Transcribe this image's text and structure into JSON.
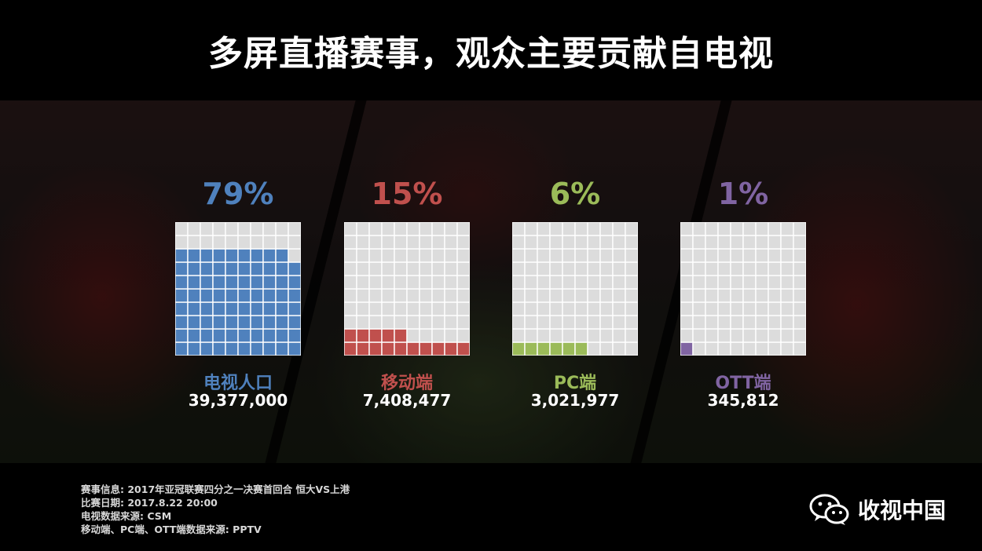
{
  "title": "多屏直播赛事，观众主要贡献自电视",
  "colors": {
    "tv": "#4f81bd",
    "mobile": "#c0504d",
    "pc": "#9bbb59",
    "ott": "#8064a2",
    "empty_cell": "#dcdcdc"
  },
  "chart_data": {
    "type": "waffle",
    "unit_cells": 100,
    "categories": [
      "电视人口",
      "移动端",
      "PC端",
      "OTT端"
    ],
    "percentages": [
      79,
      15,
      6,
      1
    ],
    "percent_labels": [
      "79%",
      "15%",
      "6%",
      "1%"
    ],
    "values": [
      39377000,
      7408477,
      3021977,
      345812
    ],
    "value_labels": [
      "39,377,000",
      "7,408,477",
      "3,021,977",
      "345,812"
    ]
  },
  "footer": {
    "lines": [
      "赛事信息: 2017年亚冠联赛四分之一决赛首回合 恒大VS上港",
      "比赛日期: 2017.8.22 20:00",
      "电视数据来源: CSM",
      "移动端、PC端、OTT端数据来源: PPTV"
    ]
  },
  "brand": {
    "name": "收视中国",
    "icon": "wechat-icon"
  }
}
